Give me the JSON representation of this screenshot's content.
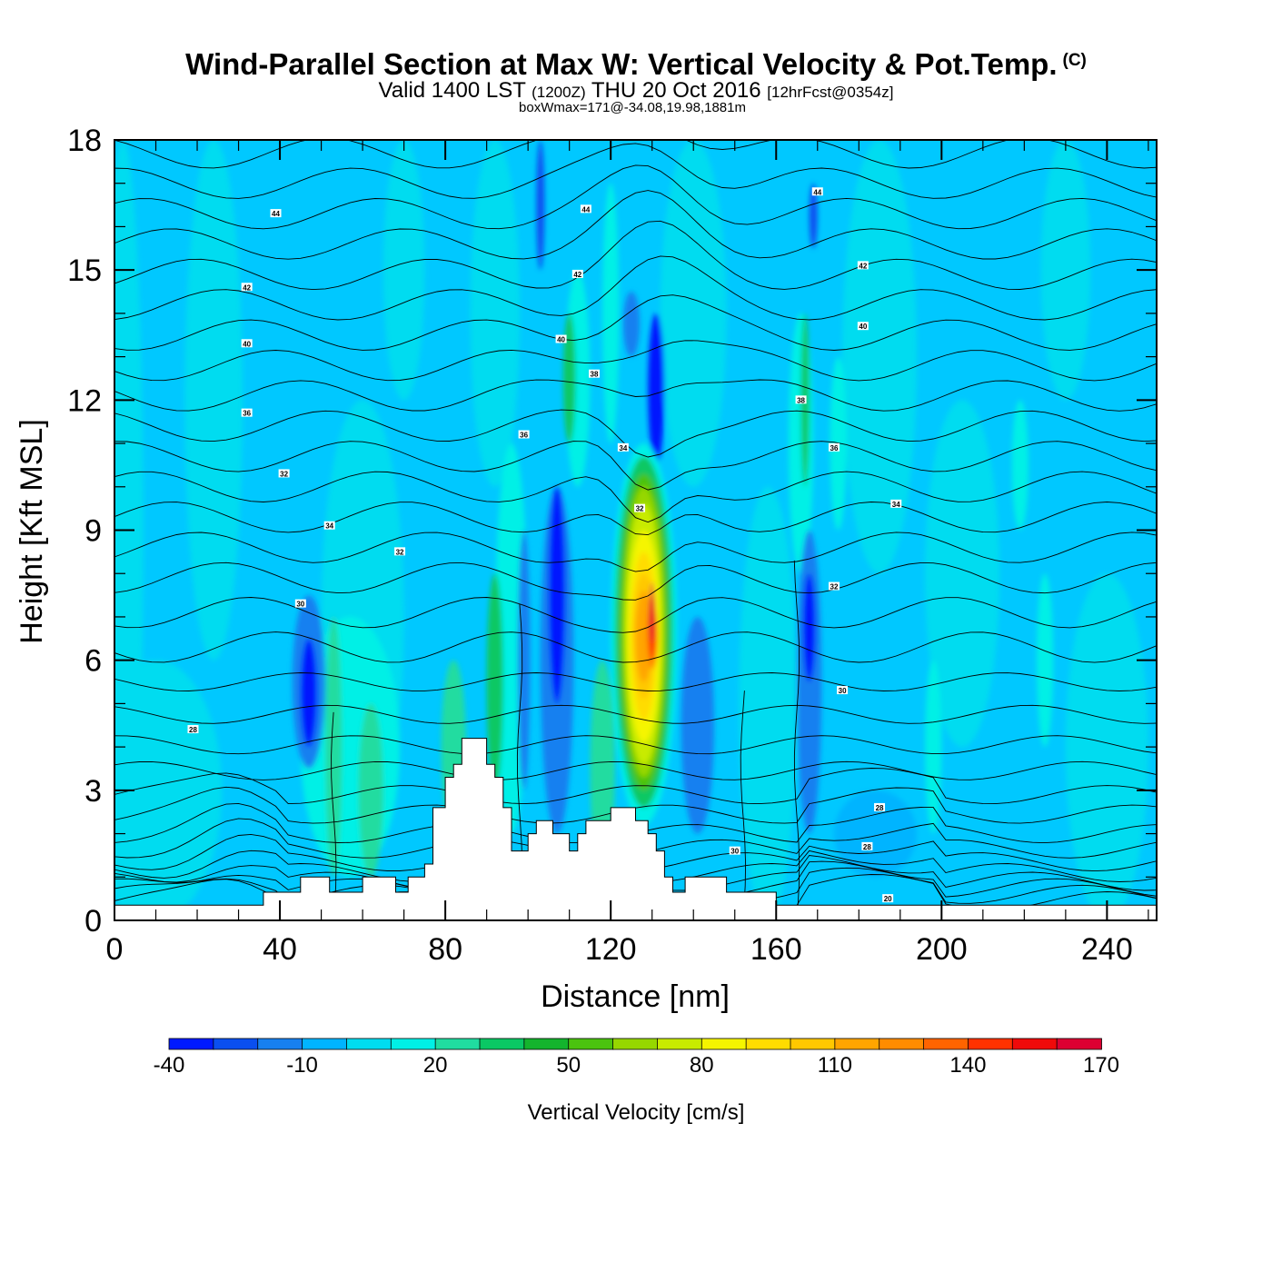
{
  "header": {
    "title": "Wind-Parallel Section at Max W: Vertical Velocity & Pot.Temp.",
    "copyright": "(C)",
    "valid_prefix": "Valid 1400 LST",
    "valid_zulu": "(1200Z)",
    "valid_date": "THU 20 Oct 2016",
    "forecast": "[12hrFcst@0354z]",
    "box_wmax": "boxWmax=171@-34.08,19.98,1881m"
  },
  "chart_data": {
    "type": "heatmap",
    "title": "Wind-Parallel Section at Max W: Vertical Velocity & Pot.Temp.",
    "xlabel": "Distance [nm]",
    "ylabel": "Height [Kft MSL]",
    "xlim": [
      0,
      252
    ],
    "ylim": [
      0,
      18
    ],
    "x_ticks": [
      "0",
      "40",
      "80",
      "120",
      "160",
      "200",
      "240"
    ],
    "y_ticks": [
      "0",
      "3",
      "6",
      "9",
      "12",
      "15",
      "18"
    ],
    "colorbar": {
      "label": "Vertical Velocity [cm/s]",
      "levels": [
        -40,
        -30,
        -20,
        -10,
        0,
        10,
        20,
        30,
        40,
        50,
        60,
        70,
        80,
        90,
        100,
        110,
        120,
        130,
        140,
        150,
        160,
        170
      ],
      "tick_labels": [
        "-40",
        "-10",
        "20",
        "50",
        "80",
        "110",
        "140",
        "170"
      ],
      "colors": [
        "#0019ff",
        "#0a4ff0",
        "#1780f0",
        "#00b4ff",
        "#00dcf0",
        "#00f0e6",
        "#20dca0",
        "#0ac864",
        "#14b42d",
        "#4bc30f",
        "#96d700",
        "#c8eb00",
        "#f5f500",
        "#ffdc00",
        "#ffc800",
        "#ffa500",
        "#ff8c00",
        "#ff6400",
        "#ff3200",
        "#f00a0a",
        "#dc0032"
      ]
    },
    "updraft_max": {
      "x_nm": 130,
      "height_kft": 7.0,
      "w_cm_s": 171
    },
    "downdrafts": [
      {
        "x_nm": 47,
        "height_kft": 5.5,
        "w_cm_s": -35
      },
      {
        "x_nm": 107,
        "height_kft": 7.5,
        "w_cm_s": -40
      },
      {
        "x_nm": 168,
        "height_kft": 6.5,
        "w_cm_s": -40
      }
    ],
    "contour_labels": [
      {
        "text": "44",
        "x": 39,
        "y": 16.3
      },
      {
        "text": "44",
        "x": 114,
        "y": 16.4
      },
      {
        "text": "44",
        "x": 170,
        "y": 16.8
      },
      {
        "text": "42",
        "x": 32,
        "y": 14.6
      },
      {
        "text": "42",
        "x": 112,
        "y": 14.9
      },
      {
        "text": "42",
        "x": 181,
        "y": 15.1
      },
      {
        "text": "40",
        "x": 32,
        "y": 13.3
      },
      {
        "text": "40",
        "x": 108,
        "y": 13.4
      },
      {
        "text": "40",
        "x": 181,
        "y": 13.7
      },
      {
        "text": "38",
        "x": 116,
        "y": 12.6
      },
      {
        "text": "38",
        "x": 166,
        "y": 12.0
      },
      {
        "text": "36",
        "x": 32,
        "y": 11.7
      },
      {
        "text": "36",
        "x": 99,
        "y": 11.2
      },
      {
        "text": "36",
        "x": 174,
        "y": 10.9
      },
      {
        "text": "34",
        "x": 123,
        "y": 10.9
      },
      {
        "text": "32",
        "x": 41,
        "y": 10.3
      },
      {
        "text": "34",
        "x": 52,
        "y": 9.1
      },
      {
        "text": "34",
        "x": 189,
        "y": 9.6
      },
      {
        "text": "32",
        "x": 127,
        "y": 9.5
      },
      {
        "text": "32",
        "x": 69,
        "y": 8.5
      },
      {
        "text": "32",
        "x": 174,
        "y": 7.7
      },
      {
        "text": "30",
        "x": 45,
        "y": 7.3
      },
      {
        "text": "30",
        "x": 176,
        "y": 5.3
      },
      {
        "text": "28",
        "x": 19,
        "y": 4.4
      },
      {
        "text": "28",
        "x": 185,
        "y": 2.6
      },
      {
        "text": "30",
        "x": 150,
        "y": 1.6
      },
      {
        "text": "28",
        "x": 182,
        "y": 1.7
      },
      {
        "text": "20",
        "x": 187,
        "y": 0.5
      }
    ]
  }
}
